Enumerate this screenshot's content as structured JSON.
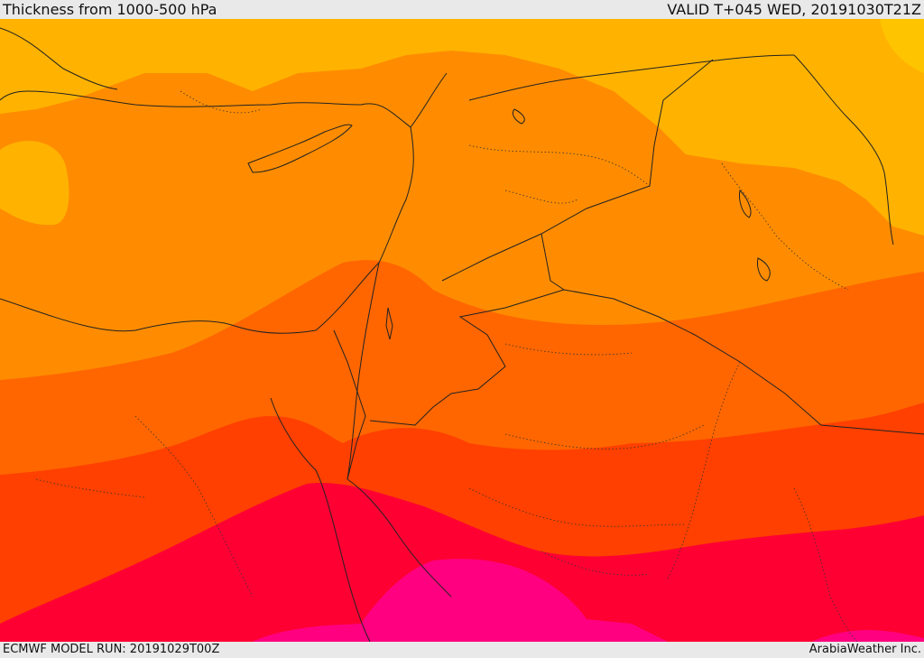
{
  "header": {
    "title": "Thickness from 1000-500 hPa",
    "valid": "VALID T+045 WED, 20191030T21Z"
  },
  "footer": {
    "model_run": "ECMWF MODEL RUN: 20191029T00Z",
    "brand": "ArabiaWeather Inc."
  },
  "map": {
    "field": "1000-500 hPa thickness",
    "colors": {
      "band_1": "#FFB300",
      "band_2": "#FF8C00",
      "band_3": "#FF6600",
      "band_4": "#FF4000",
      "band_5": "#FF0033",
      "band_6": "#FF0080",
      "boundary": "#222222"
    }
  }
}
